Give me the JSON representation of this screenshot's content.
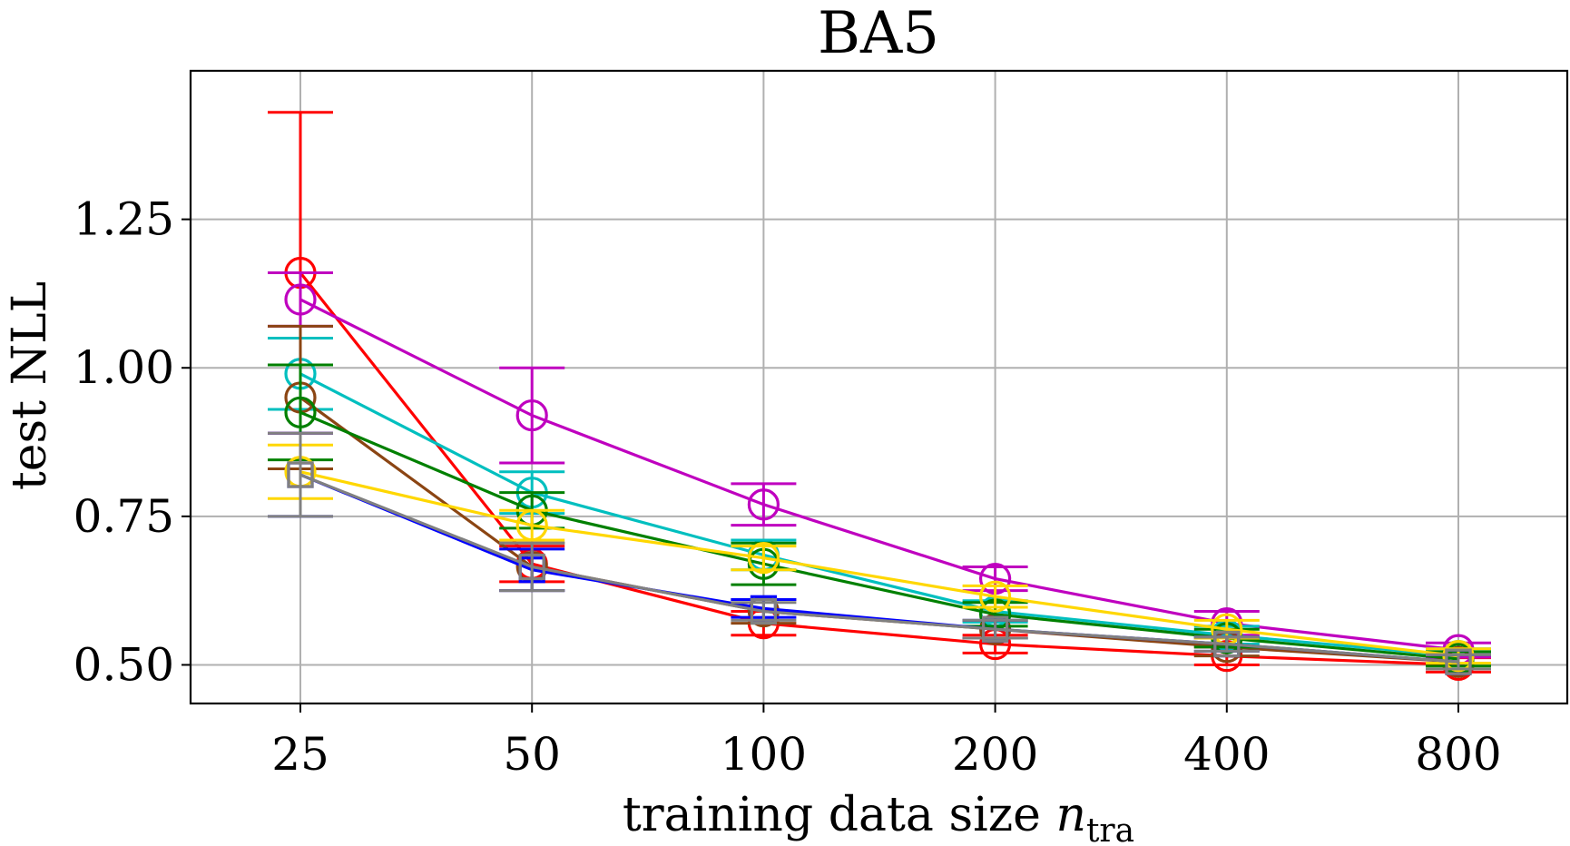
{
  "chart_data": {
    "type": "line",
    "title": "BA5",
    "xlabel": "training data size ",
    "xlabel_var": "n",
    "xlabel_sub": "tra",
    "ylabel": "test NLL",
    "categories": [
      "25",
      "50",
      "100",
      "200",
      "400",
      "800"
    ],
    "yticks": [
      "0.50",
      "0.75",
      "1.00",
      "1.25"
    ],
    "ytick_values": [
      0.5,
      0.75,
      1.0,
      1.25
    ],
    "ylim": [
      0.435,
      1.5
    ],
    "grid": true,
    "series": [
      {
        "name": "red",
        "color": "#ff0000",
        "marker": "circle",
        "values": [
          1.16,
          0.67,
          0.57,
          0.535,
          0.515,
          0.5
        ],
        "errors": [
          0.27,
          0.03,
          0.02,
          0.015,
          0.015,
          0.012
        ]
      },
      {
        "name": "magenta",
        "color": "#bf00bf",
        "marker": "circle",
        "values": [
          1.115,
          0.92,
          0.77,
          0.645,
          0.57,
          0.525
        ],
        "errors": [
          0.045,
          0.08,
          0.035,
          0.02,
          0.02,
          0.012
        ]
      },
      {
        "name": "cyan",
        "color": "#00bfbf",
        "marker": "circle",
        "values": [
          0.99,
          0.79,
          0.685,
          0.59,
          0.55,
          0.515
        ],
        "errors": [
          0.06,
          0.035,
          0.025,
          0.018,
          0.015,
          0.012
        ]
      },
      {
        "name": "brown",
        "color": "#8b4513",
        "marker": "circle",
        "values": [
          0.95,
          0.665,
          0.59,
          0.56,
          0.53,
          0.505
        ],
        "errors": [
          0.12,
          0.04,
          0.02,
          0.015,
          0.015,
          0.012
        ]
      },
      {
        "name": "green",
        "color": "#008000",
        "marker": "circle",
        "values": [
          0.925,
          0.76,
          0.67,
          0.585,
          0.545,
          0.51
        ],
        "errors": [
          0.08,
          0.03,
          0.035,
          0.02,
          0.015,
          0.012
        ]
      },
      {
        "name": "gold",
        "color": "#ffd700",
        "marker": "circle",
        "values": [
          0.825,
          0.735,
          0.68,
          0.615,
          0.56,
          0.515
        ],
        "errors": [
          0.045,
          0.025,
          0.02,
          0.018,
          0.015,
          0.012
        ]
      },
      {
        "name": "blue",
        "color": "#0000ff",
        "marker": "square",
        "values": [
          0.82,
          0.66,
          0.595,
          0.56,
          0.535,
          0.505
        ],
        "errors": [
          0.07,
          0.035,
          0.015,
          0.015,
          0.012,
          0.012
        ]
      },
      {
        "name": "gray",
        "color": "#808080",
        "marker": "square",
        "values": [
          0.82,
          0.665,
          0.59,
          0.56,
          0.535,
          0.505
        ],
        "errors": [
          0.07,
          0.04,
          0.015,
          0.015,
          0.012,
          0.012
        ]
      }
    ]
  }
}
